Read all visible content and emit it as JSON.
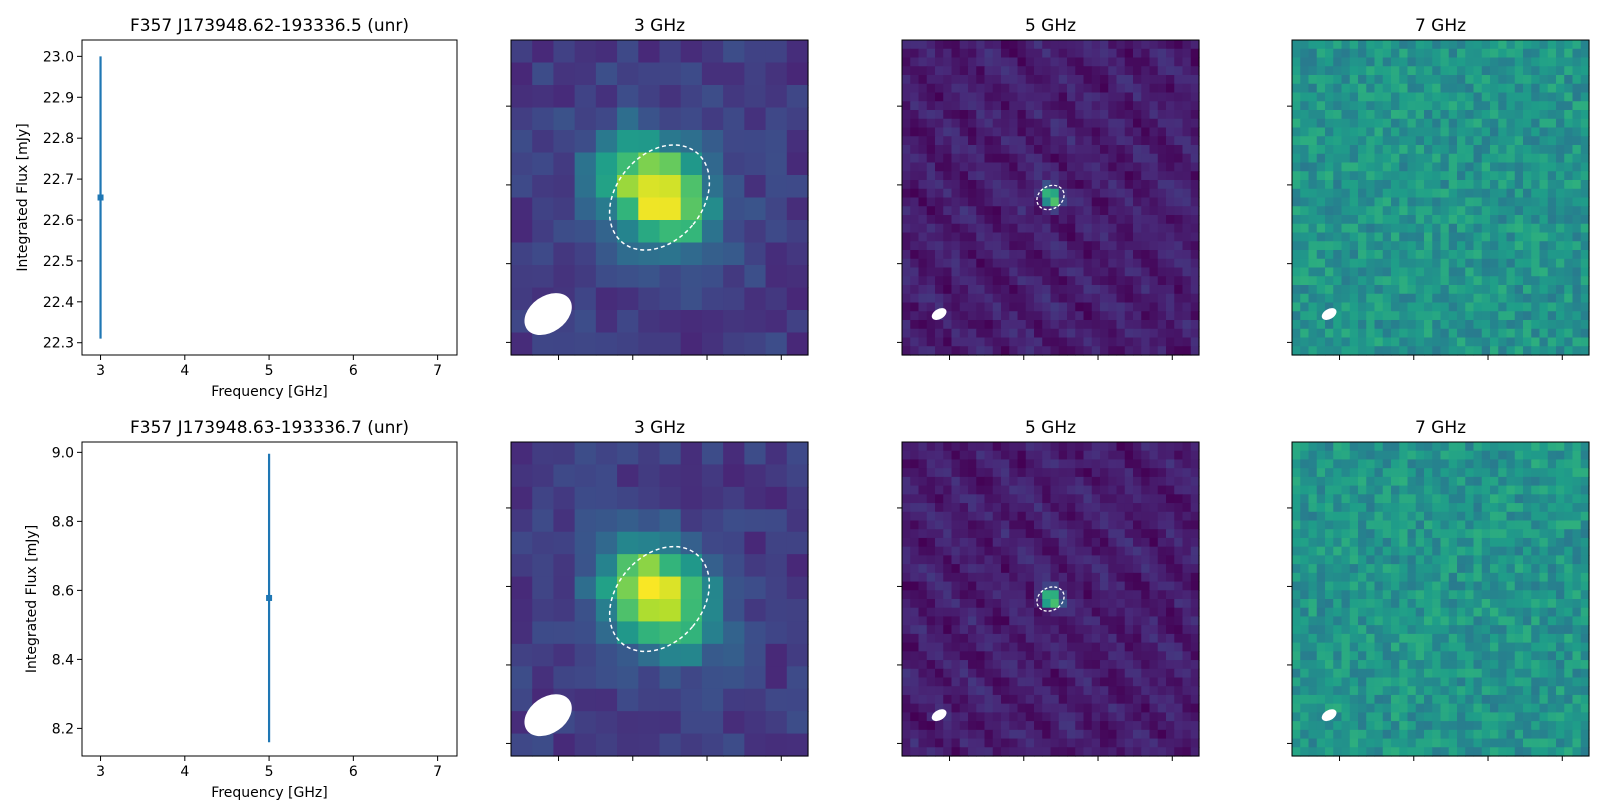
{
  "colors": {
    "errorbar": "#1f77b4",
    "beam": "#ffffff",
    "source_ellipse": "#ffffff",
    "colormap": "viridis"
  },
  "chart_data": [
    {
      "type": "scatter",
      "title": "F357 J173948.62-193336.5 (unr)",
      "xlabel": "Frequency [GHz]",
      "ylabel": "Integrated Flux [mJy]",
      "xlim": [
        2.78,
        7.23
      ],
      "ylim": [
        22.27,
        23.04
      ],
      "xticks": [
        3,
        4,
        5,
        6,
        7
      ],
      "yticks": [
        22.3,
        22.4,
        22.5,
        22.6,
        22.7,
        22.8,
        22.9,
        23.0
      ],
      "points": [
        {
          "x": 3,
          "y": 22.655,
          "yerr": 0.345
        }
      ]
    },
    {
      "type": "heatmap",
      "title": "3 GHz",
      "grid": 14,
      "source": "bright",
      "colormap": "viridis"
    },
    {
      "type": "heatmap",
      "title": "5 GHz",
      "grid": 36,
      "source": "point",
      "colormap": "viridis"
    },
    {
      "type": "heatmap",
      "title": "7 GHz",
      "grid": 36,
      "source": "noise",
      "colormap": "viridis"
    },
    {
      "type": "scatter",
      "title": "F357 J173948.63-193336.7 (unr)",
      "xlabel": "Frequency [GHz]",
      "ylabel": "Integrated Flux [mJy]",
      "xlim": [
        2.78,
        7.23
      ],
      "ylim": [
        8.12,
        9.03
      ],
      "xticks": [
        3,
        4,
        5,
        6,
        7
      ],
      "yticks": [
        8.2,
        8.4,
        8.6,
        8.8,
        9.0
      ],
      "points": [
        {
          "x": 5,
          "y": 8.578,
          "yerr": 0.418
        }
      ]
    },
    {
      "type": "heatmap",
      "title": "3 GHz",
      "grid": 14,
      "source": "bright",
      "colormap": "viridis"
    },
    {
      "type": "heatmap",
      "title": "5 GHz",
      "grid": 36,
      "source": "point",
      "colormap": "viridis"
    },
    {
      "type": "heatmap",
      "title": "7 GHz",
      "grid": 36,
      "source": "noise",
      "colormap": "viridis"
    }
  ]
}
